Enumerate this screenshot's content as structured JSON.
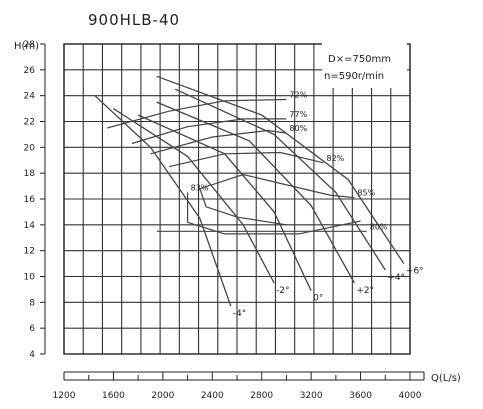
{
  "chart_data": {
    "type": "line",
    "title": "900HLB-40",
    "ylabel": "H(m)",
    "xlabel": "Q(L/s)",
    "xlim": [
      1200,
      4000
    ],
    "ylim": [
      4,
      28
    ],
    "grid": true,
    "x_ticks": [
      "1200",
      "1600",
      "2000",
      "2400",
      "2800",
      "3200",
      "3600",
      "4000"
    ],
    "y_ticks": [
      "4",
      "6",
      "8",
      "10",
      "12",
      "14",
      "16",
      "18",
      "20",
      "22",
      "24",
      "26",
      "28"
    ],
    "annotations": [
      "D×=750mm",
      "n=590r/min"
    ],
    "head_curves": [
      {
        "label": "-4°",
        "points": [
          [
            1450,
            24
          ],
          [
            1900,
            20
          ],
          [
            2300,
            14.5
          ],
          [
            2550,
            7.7
          ]
        ]
      },
      {
        "label": "-2°",
        "points": [
          [
            1600,
            23
          ],
          [
            2200,
            19.3
          ],
          [
            2650,
            14
          ],
          [
            2900,
            9.5
          ]
        ]
      },
      {
        "label": "0°",
        "points": [
          [
            1800,
            22.5
          ],
          [
            2500,
            19.5
          ],
          [
            2900,
            15
          ],
          [
            3200,
            8.9
          ]
        ]
      },
      {
        "label": "+2°",
        "points": [
          [
            1950,
            23.5
          ],
          [
            2700,
            20.5
          ],
          [
            3200,
            15.5
          ],
          [
            3550,
            9.5
          ]
        ]
      },
      {
        "label": "+4°",
        "points": [
          [
            2100,
            24.5
          ],
          [
            2900,
            21
          ],
          [
            3400,
            16.5
          ],
          [
            3800,
            10.5
          ]
        ]
      },
      {
        "label": "+6°",
        "points": [
          [
            1950,
            25.5
          ],
          [
            2800,
            22.5
          ],
          [
            3500,
            17.5
          ],
          [
            3950,
            11
          ]
        ]
      }
    ],
    "efficiency_curves": [
      {
        "label": "72%",
        "points": [
          [
            1550,
            21.5
          ],
          [
            2050,
            22.8
          ],
          [
            2500,
            23.6
          ],
          [
            3000,
            23.7
          ]
        ]
      },
      {
        "label": "77%",
        "points": [
          [
            1750,
            20.3
          ],
          [
            2200,
            21.6
          ],
          [
            2650,
            22.2
          ],
          [
            3000,
            22.2
          ]
        ]
      },
      {
        "label": "80%",
        "points": [
          [
            1900,
            19.5
          ],
          [
            2400,
            20.8
          ],
          [
            2850,
            21.3
          ],
          [
            3000,
            21.1
          ]
        ]
      },
      {
        "label": "82%",
        "points": [
          [
            2050,
            18.5
          ],
          [
            2500,
            19.5
          ],
          [
            2950,
            19.6
          ],
          [
            3300,
            18.8
          ]
        ]
      },
      {
        "label": "85%",
        "points": [
          [
            3000,
            14
          ],
          [
            2600,
            14.6
          ],
          [
            2350,
            15.4
          ],
          [
            2300,
            16.8
          ],
          [
            2650,
            17.9
          ],
          [
            3350,
            16.3
          ],
          [
            3550,
            16.1
          ]
        ]
      },
      {
        "label": "83%",
        "points": [
          [
            3600,
            14.3
          ],
          [
            3100,
            13.3
          ],
          [
            2500,
            13.3
          ],
          [
            2200,
            14.2
          ],
          [
            2200,
            16.5
          ]
        ]
      },
      {
        "label": "80%",
        "points": [
          [
            1950,
            13.5
          ],
          [
            2550,
            13.5
          ],
          [
            3150,
            13.5
          ],
          [
            3650,
            13.5
          ]
        ]
      }
    ]
  }
}
